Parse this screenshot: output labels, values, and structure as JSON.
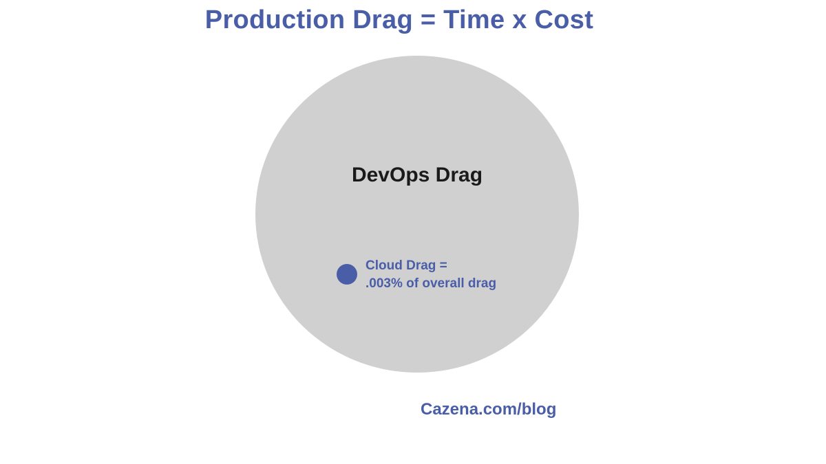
{
  "title": "Production Drag = Time x Cost",
  "diagram": {
    "outer_label": "DevOps Drag",
    "inner_label_line1": "Cloud Drag =",
    "inner_label_line2": ".003% of overall drag",
    "outer_color": "#d0d0d0",
    "inner_color": "#4a5ea8"
  },
  "footer": {
    "link": "Cazena.com/blog"
  },
  "colors": {
    "accent": "#4a5ea8",
    "text_dark": "#1a1a1a",
    "background": "#ffffff"
  }
}
